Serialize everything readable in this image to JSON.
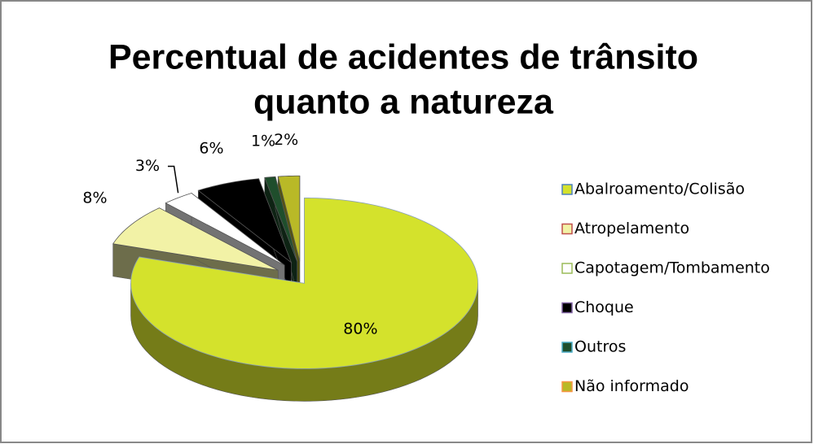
{
  "chart_data": {
    "type": "pie",
    "title": [
      "Percentual de acidentes de trânsito",
      "quanto a natureza"
    ],
    "categories": [
      "Abalroamento/Colisão",
      "Atropelamento",
      "Capotagem/Tombamento",
      "Choque",
      "Outros",
      "Não informado"
    ],
    "values": [
      80,
      8,
      3,
      6,
      1,
      2
    ],
    "value_labels": [
      "80%",
      "8%",
      "3%",
      "6%",
      "1%",
      "2%"
    ],
    "colors": [
      "#d4e22c",
      "#f2f2a6",
      "#ffffff",
      "#000000",
      "#1f4e2c",
      "#b9b927"
    ],
    "legend_border_colors": [
      "#4f81bd",
      "#c0504d",
      "#9bbb59",
      "#8064a2",
      "#4bacc6",
      "#f79646"
    ],
    "legend": "right"
  }
}
